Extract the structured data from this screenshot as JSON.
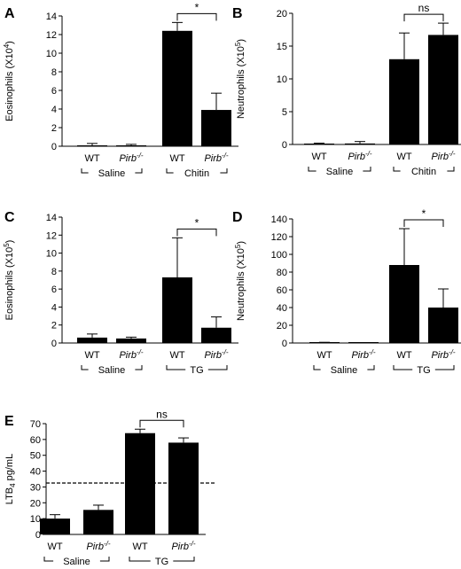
{
  "chart_data": [
    {
      "panel": "A",
      "type": "bar",
      "ylabel_main": "Eosinophils (X10",
      "ylabel_sup": "4",
      "ylabel_tail": ")",
      "ylim": [
        0,
        14
      ],
      "yticks": [
        "0",
        "2",
        "4",
        "6",
        "8",
        "10",
        "12",
        "14"
      ],
      "categories": [
        {
          "main": "WT",
          "sup": ""
        },
        {
          "main": "Pirb",
          "sup": "-/-"
        },
        {
          "main": "WT",
          "sup": ""
        },
        {
          "main": "Pirb",
          "sup": "-/-"
        }
      ],
      "values": [
        0.05,
        0.02,
        12.4,
        3.9
      ],
      "errors": [
        0.25,
        0.18,
        0.9,
        1.8
      ],
      "groups": [
        "Saline",
        "Chitin"
      ],
      "significance": {
        "from": 2,
        "to": 3,
        "label": "*"
      }
    },
    {
      "panel": "B",
      "type": "bar",
      "ylabel_main": "Neutrophils (X10",
      "ylabel_sup": "5",
      "ylabel_tail": ")",
      "ylim": [
        0,
        20
      ],
      "yticks": [
        "0",
        "5",
        "10",
        "15",
        "20"
      ],
      "categories": [
        {
          "main": "WT",
          "sup": ""
        },
        {
          "main": "Pirb",
          "sup": "-/-"
        },
        {
          "main": "WT",
          "sup": ""
        },
        {
          "main": "Pirb",
          "sup": "-/-"
        }
      ],
      "values": [
        0.05,
        0.15,
        13.0,
        16.7
      ],
      "errors": [
        0.15,
        0.3,
        4.0,
        1.8
      ],
      "groups": [
        "Saline",
        "Chitin"
      ],
      "significance": {
        "from": 2,
        "to": 3,
        "label": "ns"
      }
    },
    {
      "panel": "C",
      "type": "bar",
      "ylabel_main": "Eosinophils (X10",
      "ylabel_sup": "5",
      "ylabel_tail": ")",
      "ylim": [
        0,
        14
      ],
      "yticks": [
        "0",
        "2",
        "4",
        "6",
        "8",
        "10",
        "12",
        "14"
      ],
      "categories": [
        {
          "main": "WT",
          "sup": ""
        },
        {
          "main": "Pirb",
          "sup": "-/-"
        },
        {
          "main": "WT",
          "sup": ""
        },
        {
          "main": "Pirb",
          "sup": "-/-"
        }
      ],
      "values": [
        0.6,
        0.5,
        7.3,
        1.7
      ],
      "errors": [
        0.4,
        0.15,
        4.4,
        1.2
      ],
      "groups": [
        "Saline",
        "TG"
      ],
      "significance": {
        "from": 2,
        "to": 3,
        "label": "*"
      }
    },
    {
      "panel": "D",
      "type": "bar",
      "ylabel_main": "Neutrophils (X10",
      "ylabel_sup": "5",
      "ylabel_tail": ")",
      "ylim": [
        0,
        140
      ],
      "yticks": [
        "0",
        "20",
        "40",
        "60",
        "80",
        "100",
        "120",
        "140"
      ],
      "categories": [
        {
          "main": "WT",
          "sup": ""
        },
        {
          "main": "Pirb",
          "sup": "-/-"
        },
        {
          "main": "WT",
          "sup": ""
        },
        {
          "main": "Pirb",
          "sup": "-/-"
        }
      ],
      "values": [
        0.5,
        0.2,
        88,
        40
      ],
      "errors": [
        0.3,
        0.1,
        41,
        21
      ],
      "groups": [
        "Saline",
        "TG"
      ],
      "significance": {
        "from": 2,
        "to": 3,
        "label": "*"
      }
    },
    {
      "panel": "E",
      "type": "bar",
      "ylabel_main": "LTB",
      "ylabel_sub": "4",
      "ylabel_tail": " pg/mL",
      "ylim": [
        0,
        70
      ],
      "yticks": [
        "0",
        "10",
        "20",
        "30",
        "40",
        "50",
        "60",
        "70"
      ],
      "categories": [
        {
          "main": "WT",
          "sup": ""
        },
        {
          "main": "Pirb",
          "sup": "-/-"
        },
        {
          "main": "WT",
          "sup": ""
        },
        {
          "main": "Pirb",
          "sup": "-/-"
        }
      ],
      "values": [
        10,
        15.5,
        64,
        58
      ],
      "errors": [
        2.5,
        3,
        2.5,
        3
      ],
      "groups": [
        "Saline",
        "TG"
      ],
      "reference_line": 32.5,
      "significance": {
        "from": 2,
        "to": 3,
        "label": "ns"
      }
    }
  ]
}
